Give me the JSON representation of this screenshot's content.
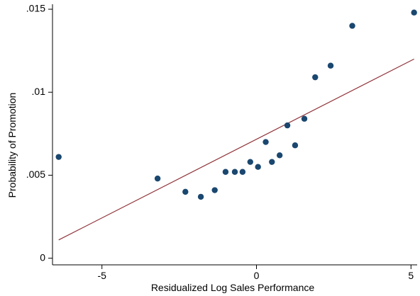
{
  "chart_data": {
    "type": "scatter",
    "xlabel": "Residualized Log Sales Performance",
    "ylabel": "Probability of Promotion",
    "xlim": [
      -6.6,
      5.2
    ],
    "ylim": [
      -0.0004,
      0.0153
    ],
    "x_ticks": [
      -5,
      0,
      5
    ],
    "x_tick_labels": [
      "-5",
      "0",
      "5"
    ],
    "y_ticks": [
      0,
      0.005,
      0.01,
      0.015
    ],
    "y_tick_labels": [
      "0",
      ".005",
      ".01",
      ".015"
    ],
    "grid": false,
    "legend": "none",
    "colors": {
      "points": "#1a476f",
      "fit_line": "#90353b",
      "axis": "#000000"
    },
    "points": [
      {
        "x": -6.4,
        "y": 0.0061
      },
      {
        "x": -3.2,
        "y": 0.0048
      },
      {
        "x": -2.3,
        "y": 0.004
      },
      {
        "x": -1.8,
        "y": 0.0037
      },
      {
        "x": -1.35,
        "y": 0.0041
      },
      {
        "x": -1.0,
        "y": 0.0052
      },
      {
        "x": -0.7,
        "y": 0.0052
      },
      {
        "x": -0.45,
        "y": 0.0052
      },
      {
        "x": -0.2,
        "y": 0.0058
      },
      {
        "x": 0.05,
        "y": 0.0055
      },
      {
        "x": 0.3,
        "y": 0.007
      },
      {
        "x": 0.5,
        "y": 0.0058
      },
      {
        "x": 0.75,
        "y": 0.0062
      },
      {
        "x": 1.0,
        "y": 0.008
      },
      {
        "x": 1.25,
        "y": 0.0068
      },
      {
        "x": 1.55,
        "y": 0.0084
      },
      {
        "x": 1.9,
        "y": 0.0109
      },
      {
        "x": 2.4,
        "y": 0.0116
      },
      {
        "x": 3.1,
        "y": 0.014
      },
      {
        "x": 5.1,
        "y": 0.0148
      }
    ],
    "fit_line": {
      "x": [
        -6.4,
        5.1
      ],
      "y": [
        0.0011,
        0.012
      ]
    }
  }
}
